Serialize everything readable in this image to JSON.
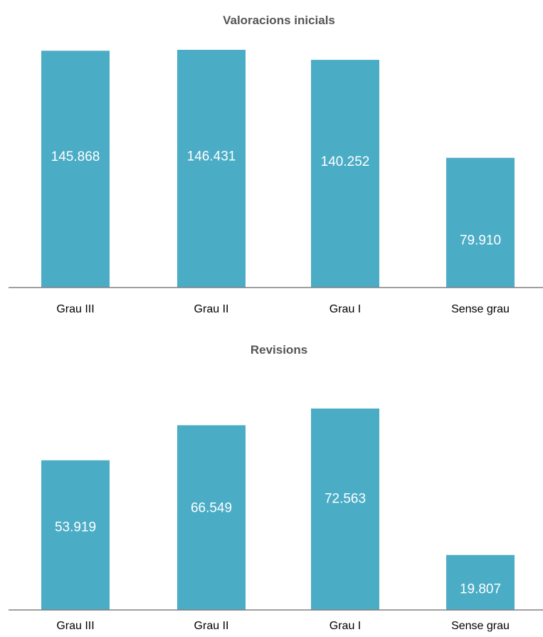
{
  "bar_color": "#4BACC6",
  "axis_color": "#808080",
  "title_color": "#555555",
  "chart_data": [
    {
      "type": "bar",
      "title": "Valoracions inicials",
      "categories": [
        "Grau III",
        "Grau II",
        "Grau I",
        "Sense grau"
      ],
      "values": [
        145868,
        146431,
        140252,
        79910
      ],
      "data_labels": [
        "145.868",
        "146.431",
        "140.252",
        "79.910"
      ]
    },
    {
      "type": "bar",
      "title": "Revisions",
      "categories": [
        "Grau III",
        "Grau II",
        "Grau I",
        "Sense grau"
      ],
      "values": [
        53919,
        66549,
        72563,
        19807
      ],
      "data_labels": [
        "53.919",
        "66.549",
        "72.563",
        "19.807"
      ]
    }
  ]
}
